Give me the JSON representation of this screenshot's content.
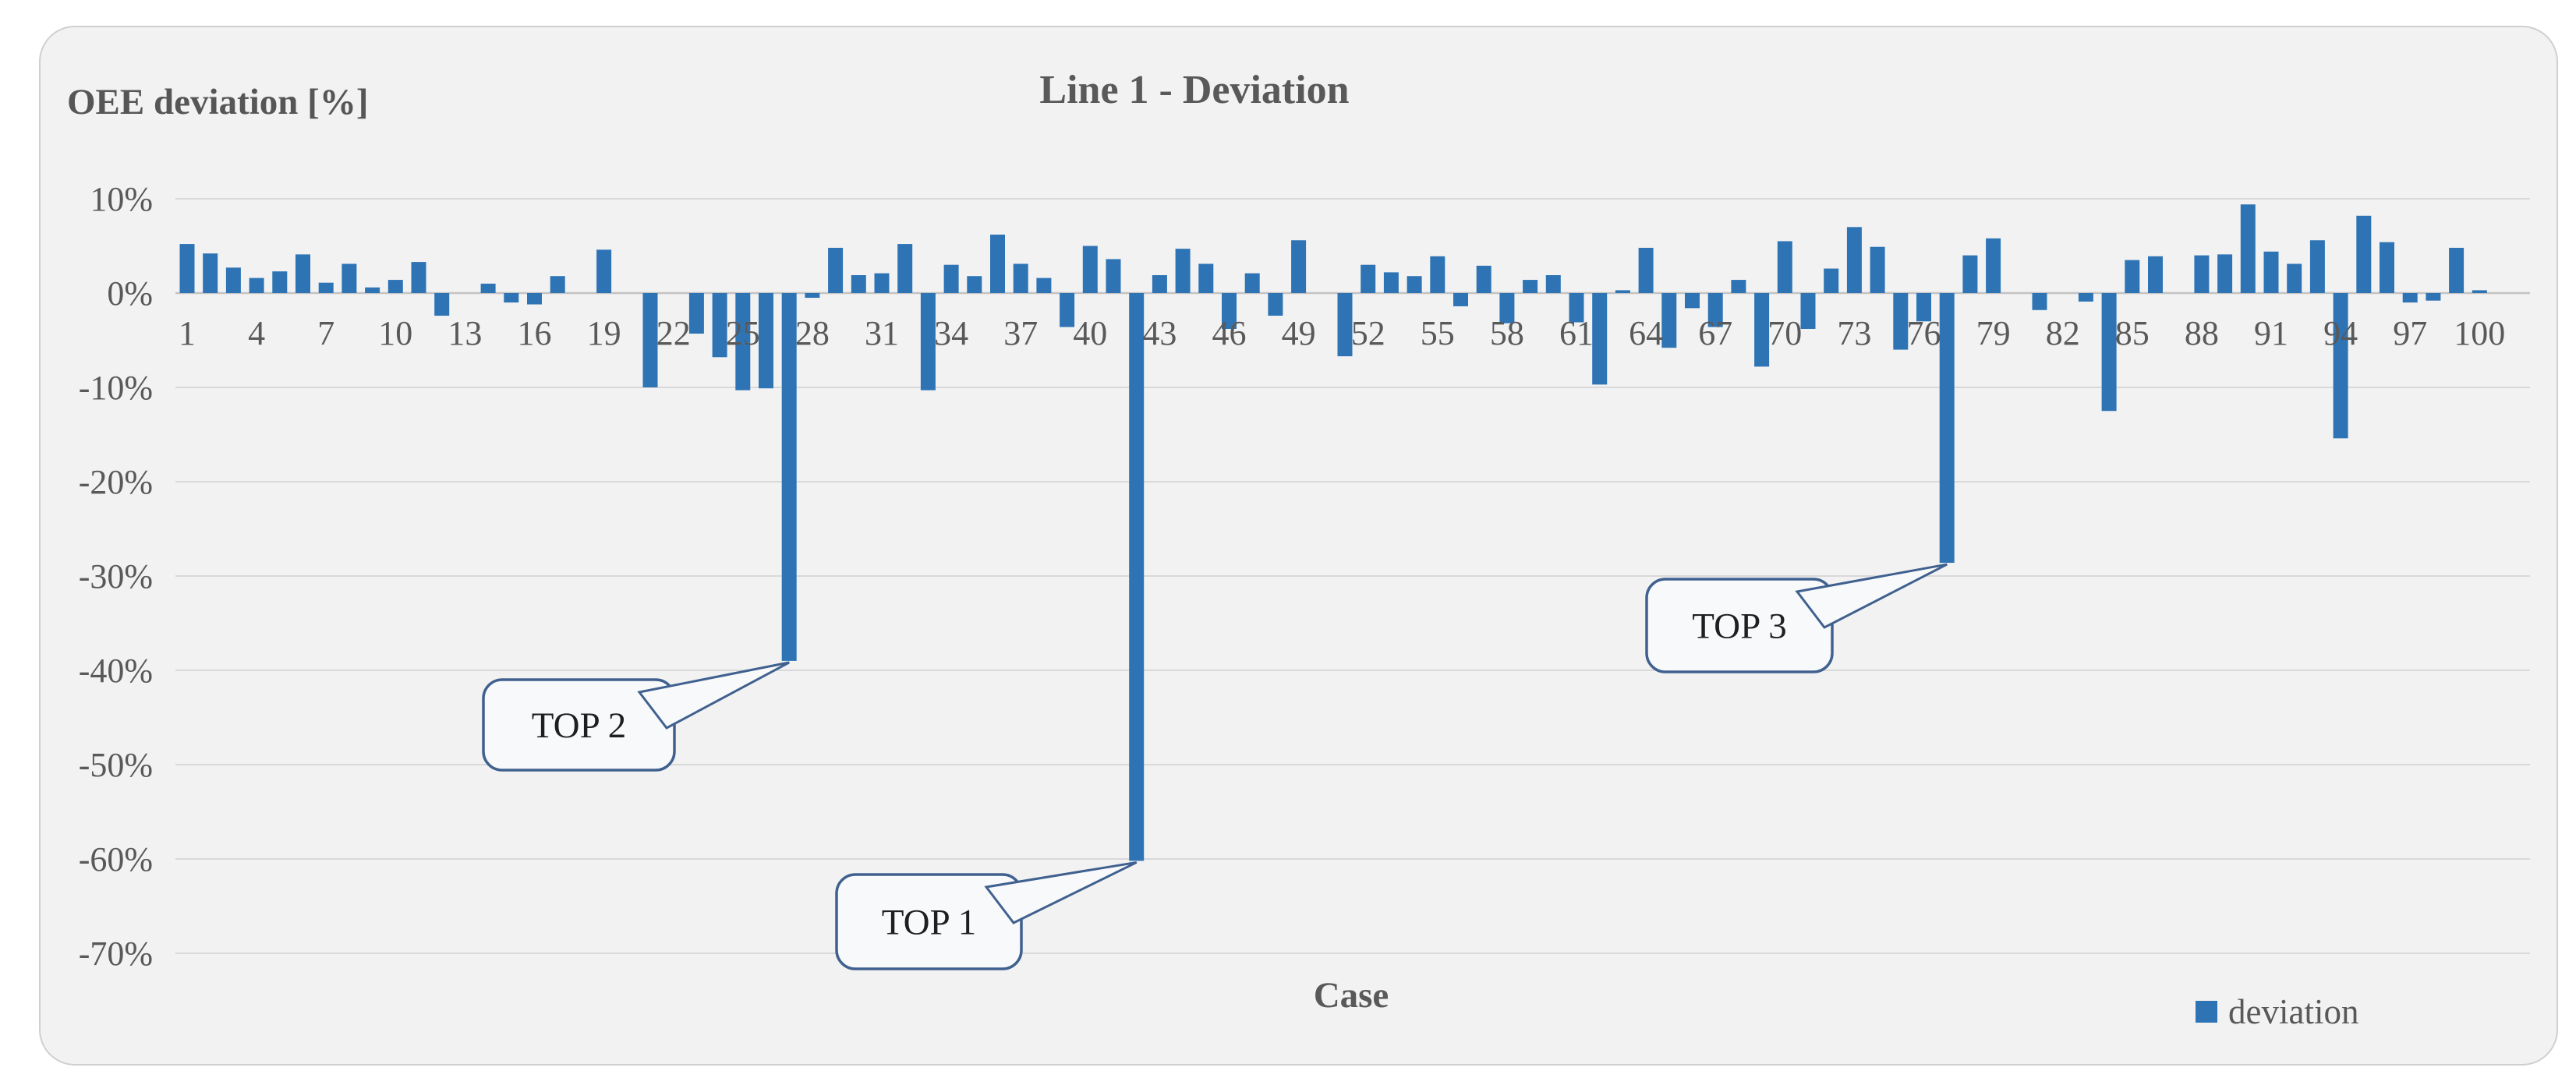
{
  "chart_data": {
    "type": "bar",
    "title": "Line 1 - Deviation",
    "y_axis_label": "OEE deviation [%]",
    "x_axis_label": "Case",
    "legend": [
      {
        "label": "deviation",
        "color": "#2E74B5"
      }
    ],
    "bar_color": "#2E74B5",
    "grid_color": "#D9D9D9",
    "axis_color": "#C3C3C3",
    "text_color": "#595959",
    "callout_border_color": "#40618F",
    "callout_fill_color": "#F8F9FA",
    "ylim": [
      -70,
      10
    ],
    "y_gridlines": [
      10,
      0,
      -10,
      -20,
      -30,
      -40,
      -50,
      -60,
      -70
    ],
    "y_tick_suffix": "%",
    "x_ticks": [
      1,
      4,
      7,
      10,
      13,
      16,
      19,
      22,
      25,
      28,
      31,
      34,
      37,
      40,
      43,
      46,
      49,
      52,
      55,
      58,
      61,
      64,
      67,
      70,
      73,
      76,
      79,
      82,
      85,
      88,
      91,
      94,
      97,
      100
    ],
    "x": [
      1,
      2,
      3,
      4,
      5,
      6,
      7,
      8,
      9,
      10,
      11,
      12,
      13,
      14,
      15,
      16,
      17,
      18,
      19,
      20,
      21,
      22,
      23,
      24,
      25,
      26,
      27,
      28,
      29,
      30,
      31,
      32,
      33,
      34,
      35,
      36,
      37,
      38,
      39,
      40,
      41,
      42,
      43,
      44,
      45,
      46,
      47,
      48,
      49,
      50,
      51,
      52,
      53,
      54,
      55,
      56,
      57,
      58,
      59,
      60,
      61,
      62,
      63,
      64,
      65,
      66,
      67,
      68,
      69,
      70,
      71,
      72,
      73,
      74,
      75,
      76,
      77,
      78,
      79,
      80,
      81,
      82,
      83,
      84,
      85,
      86,
      87,
      88,
      89,
      90,
      91,
      92,
      93,
      94,
      95,
      96,
      97,
      98,
      99,
      100
    ],
    "values": [
      5.2,
      4.2,
      2.7,
      1.6,
      2.3,
      4.1,
      1.1,
      3.1,
      0.6,
      1.4,
      3.3,
      -2.4,
      0,
      1.0,
      -1.0,
      -1.2,
      1.8,
      0,
      4.6,
      0,
      -10.0,
      0,
      -4.3,
      -6.8,
      -10.3,
      -10.1,
      -39.0,
      -0.5,
      4.8,
      1.9,
      2.1,
      5.2,
      -10.3,
      3.0,
      1.8,
      6.2,
      3.1,
      1.6,
      -3.6,
      5.0,
      3.6,
      -60.2,
      1.9,
      4.7,
      3.1,
      -3.8,
      2.1,
      -2.4,
      5.6,
      0,
      -6.7,
      3.0,
      2.2,
      1.8,
      3.9,
      -1.4,
      2.9,
      -3.2,
      1.4,
      1.9,
      -3.1,
      -9.7,
      0.3,
      4.8,
      -5.8,
      -1.6,
      -3.6,
      1.4,
      -7.8,
      5.5,
      -3.8,
      2.6,
      7.0,
      4.9,
      -6.0,
      -3.0,
      -28.6,
      4.0,
      5.8,
      0,
      -1.8,
      0,
      -0.9,
      -12.5,
      3.5,
      3.9,
      0,
      4.0,
      4.1,
      9.4,
      4.4,
      3.1,
      5.6,
      -15.4,
      8.2,
      5.4,
      -1.0,
      -0.8,
      4.8,
      0.3
    ],
    "annotations": [
      {
        "label": "TOP 1",
        "case": 42,
        "value": -60.2
      },
      {
        "label": "TOP 2",
        "case": 27,
        "value": -39.0
      },
      {
        "label": "TOP 3",
        "case": 77,
        "value": -28.6
      }
    ]
  }
}
